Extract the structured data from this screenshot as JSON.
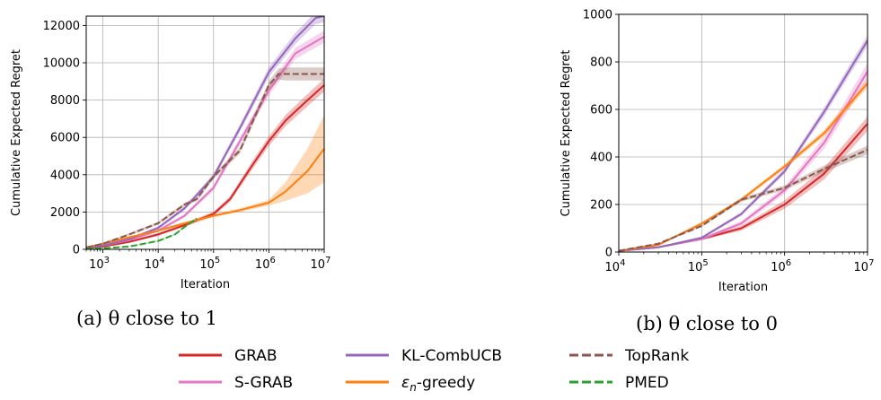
{
  "chart_data": [
    {
      "type": "line",
      "caption": "(a) θ close to 1",
      "xlabel": "Iteration",
      "ylabel": "Cumulative Expected Regret",
      "xscale": "log",
      "xlim": [
        500,
        10000000
      ],
      "ylim": [
        0,
        12500
      ],
      "xticks": [
        {
          "value": 1000,
          "base": "10",
          "exp": "3"
        },
        {
          "value": 10000,
          "base": "10",
          "exp": "4"
        },
        {
          "value": 100000,
          "base": "10",
          "exp": "5"
        },
        {
          "value": 1000000,
          "base": "10",
          "exp": "6"
        },
        {
          "value": 10000000,
          "base": "10",
          "exp": "7"
        }
      ],
      "yticks": [
        0,
        2000,
        4000,
        6000,
        8000,
        10000,
        12000
      ],
      "grid": true,
      "series": [
        {
          "name": "GRAB",
          "color": "#d62728",
          "dash": "solid",
          "x": [
            500,
            1000,
            3000,
            10000,
            30000,
            100000,
            200000,
            300000,
            500000,
            1000000,
            2000000,
            5000000,
            10000000
          ],
          "y": [
            50,
            150,
            400,
            800,
            1300,
            1900,
            2700,
            3500,
            4500,
            5800,
            6900,
            8000,
            8800
          ],
          "band": [
            30,
            40,
            60,
            80,
            100,
            120,
            150,
            180,
            220,
            260,
            300,
            330,
            350
          ]
        },
        {
          "name": "S-GRAB",
          "color": "#e377c2",
          "dash": "solid",
          "x": [
            500,
            1000,
            3000,
            10000,
            30000,
            100000,
            300000,
            1000000,
            3000000,
            10000000
          ],
          "y": [
            50,
            200,
            500,
            1000,
            1800,
            3300,
            5800,
            8500,
            10500,
            11400
          ],
          "band": [
            30,
            40,
            60,
            80,
            100,
            150,
            200,
            260,
            300,
            330
          ]
        },
        {
          "name": "KL-CombUCB",
          "color": "#9467bd",
          "dash": "solid",
          "x": [
            500,
            1000,
            3000,
            10000,
            30000,
            100000,
            300000,
            1000000,
            3000000,
            7000000,
            10000000
          ],
          "y": [
            50,
            200,
            550,
            1150,
            2200,
            3900,
            6500,
            9500,
            11300,
            12400,
            12500
          ],
          "band": [
            30,
            40,
            60,
            80,
            100,
            150,
            200,
            260,
            300,
            330,
            330
          ]
        },
        {
          "name": "ε_n-greedy",
          "color": "#ff7f0e",
          "dash": "solid",
          "x": [
            500,
            1000,
            3000,
            10000,
            30000,
            100000,
            300000,
            1000000,
            2000000,
            5000000,
            10000000
          ],
          "y": [
            100,
            300,
            650,
            1000,
            1400,
            1800,
            2100,
            2500,
            3100,
            4200,
            5400
          ],
          "band": [
            20,
            30,
            40,
            50,
            60,
            80,
            100,
            150,
            500,
            1200,
            1800
          ]
        },
        {
          "name": "TopRank",
          "color": "#8c564b",
          "dash": "dashed",
          "x": [
            500,
            1000,
            3000,
            10000,
            30000,
            50000,
            100000,
            300000,
            1000000,
            1500000,
            2000000,
            5000000,
            10000000
          ],
          "y": [
            100,
            300,
            800,
            1400,
            2400,
            2700,
            3900,
            5300,
            8800,
            9400,
            9400,
            9400,
            9400
          ],
          "band": [
            30,
            40,
            60,
            80,
            100,
            110,
            130,
            170,
            220,
            300,
            350,
            350,
            350
          ]
        },
        {
          "name": "PMED",
          "color": "#2ca02c",
          "dash": "dashed",
          "x": [
            500,
            1000,
            3000,
            10000,
            20000,
            30000,
            50000
          ],
          "y": [
            30,
            60,
            150,
            450,
            800,
            1200,
            1650
          ],
          "band": [
            10,
            15,
            25,
            40,
            50,
            60,
            70
          ]
        }
      ]
    },
    {
      "type": "line",
      "caption": "(b) θ close to 0",
      "xlabel": "Iteration",
      "ylabel": "Cumulative Expected Regret",
      "xscale": "log",
      "xlim": [
        10000,
        10000000
      ],
      "ylim": [
        0,
        1000
      ],
      "xticks": [
        {
          "value": 10000,
          "base": "10",
          "exp": "4"
        },
        {
          "value": 100000,
          "base": "10",
          "exp": "5"
        },
        {
          "value": 1000000,
          "base": "10",
          "exp": "6"
        },
        {
          "value": 10000000,
          "base": "10",
          "exp": "7"
        }
      ],
      "yticks": [
        0,
        200,
        400,
        600,
        800,
        1000
      ],
      "grid": true,
      "series": [
        {
          "name": "GRAB",
          "color": "#d62728",
          "dash": "solid",
          "x": [
            10000,
            30000,
            100000,
            300000,
            1000000,
            3000000,
            10000000
          ],
          "y": [
            5,
            20,
            55,
            100,
            200,
            330,
            540
          ],
          "band": [
            2,
            3,
            5,
            10,
            18,
            25,
            30
          ]
        },
        {
          "name": "S-GRAB",
          "color": "#e377c2",
          "dash": "solid",
          "x": [
            10000,
            30000,
            100000,
            300000,
            1000000,
            3000000,
            10000000
          ],
          "y": [
            5,
            20,
            55,
            120,
            260,
            460,
            760
          ],
          "band": [
            2,
            3,
            5,
            10,
            15,
            25,
            35
          ]
        },
        {
          "name": "KL-CombUCB",
          "color": "#9467bd",
          "dash": "solid",
          "x": [
            10000,
            30000,
            100000,
            300000,
            1000000,
            3000000,
            10000000
          ],
          "y": [
            5,
            20,
            60,
            160,
            340,
            590,
            890
          ],
          "band": [
            2,
            3,
            5,
            8,
            12,
            18,
            22
          ]
        },
        {
          "name": "ε_n-greedy",
          "color": "#ff7f0e",
          "dash": "solid",
          "x": [
            10000,
            30000,
            100000,
            300000,
            1000000,
            3000000,
            10000000
          ],
          "y": [
            5,
            30,
            120,
            220,
            360,
            500,
            710
          ],
          "band": [
            2,
            3,
            5,
            8,
            10,
            14,
            18
          ]
        },
        {
          "name": "TopRank",
          "color": "#8c564b",
          "dash": "dashed",
          "x": [
            10000,
            30000,
            100000,
            300000,
            1000000,
            3000000,
            10000000
          ],
          "y": [
            5,
            35,
            110,
            220,
            270,
            350,
            430
          ],
          "band": [
            2,
            3,
            5,
            8,
            10,
            14,
            18
          ]
        }
      ]
    }
  ],
  "legend": {
    "placement": "bottom",
    "entries": [
      {
        "label": "GRAB",
        "sub": "",
        "tail": "",
        "color": "#d62728",
        "dash": "solid"
      },
      {
        "label": "S-GRAB",
        "sub": "",
        "tail": "",
        "color": "#e377c2",
        "dash": "solid"
      },
      {
        "label": "KL-CombUCB",
        "sub": "",
        "tail": "",
        "color": "#9467bd",
        "dash": "solid"
      },
      {
        "label": "ε",
        "sub": "n",
        "tail": "-greedy",
        "color": "#ff7f0e",
        "dash": "solid"
      },
      {
        "label": "TopRank",
        "sub": "",
        "tail": "",
        "color": "#8c564b",
        "dash": "dashed"
      },
      {
        "label": "PMED",
        "sub": "",
        "tail": "",
        "color": "#2ca02c",
        "dash": "dashed"
      }
    ]
  }
}
